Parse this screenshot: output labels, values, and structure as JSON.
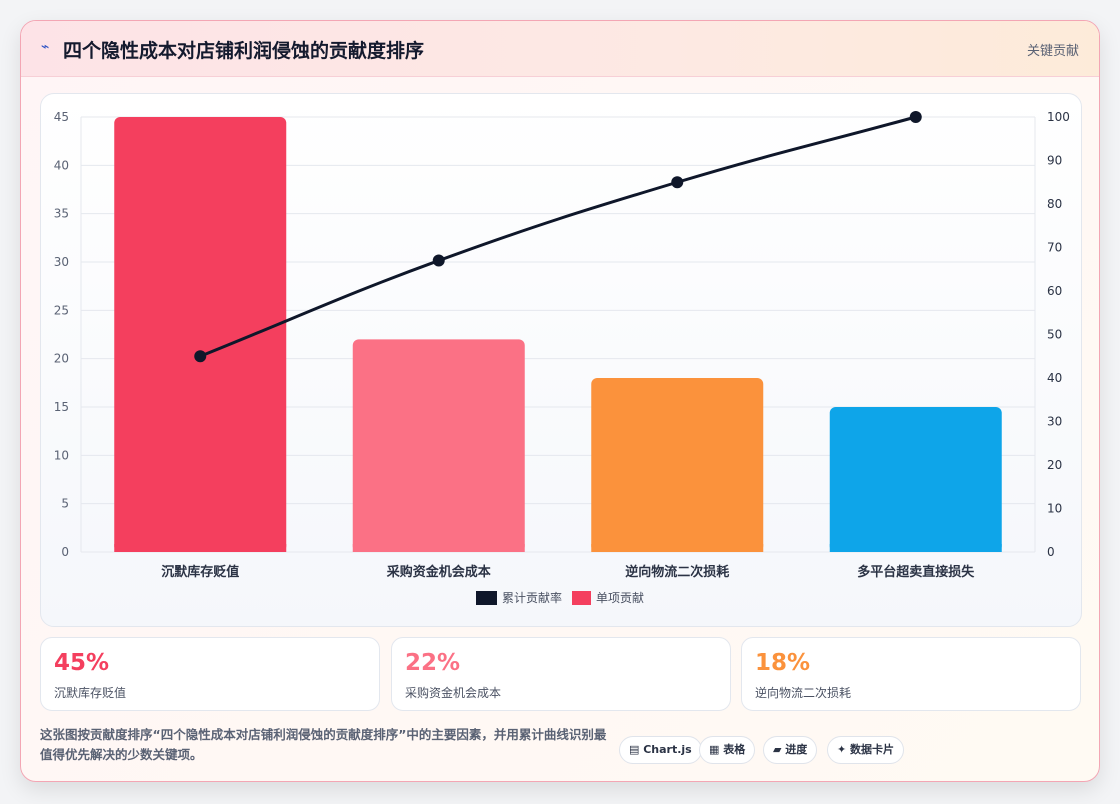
{
  "header": {
    "icon": "chart-line-icon",
    "icon_glyph": "⌁",
    "title": "四个隐性成本对店铺利润侵蚀的贡献度排序",
    "tag": "关键贡献"
  },
  "chart_data": {
    "type": "bar",
    "title": "",
    "categories": [
      "沉默库存贬值",
      "采购资金机会成本",
      "逆向物流二次损耗",
      "多平台超卖直接损失"
    ],
    "series": [
      {
        "name": "单项贡献",
        "type": "bar",
        "axis": "left",
        "values": [
          45,
          22,
          18,
          15
        ],
        "colors": [
          "#f43f5e",
          "#fb7185",
          "#fb923c",
          "#0ea5e9"
        ]
      },
      {
        "name": "累计贡献率",
        "type": "line",
        "axis": "right",
        "values": [
          45,
          67,
          85,
          100
        ],
        "color": "#0f172a"
      }
    ],
    "y_left": {
      "min": 0,
      "max": 45,
      "step": 5
    },
    "y_right": {
      "min": 0,
      "max": 100,
      "step": 10
    },
    "grid": true,
    "legend_position": "bottom",
    "legend_order": [
      "累计贡献率",
      "单项贡献"
    ]
  },
  "kpis": [
    {
      "value": "45%",
      "label": "沉默库存贬值",
      "color": "#f43f5e"
    },
    {
      "value": "22%",
      "label": "采购资金机会成本",
      "color": "#fb7185"
    },
    {
      "value": "18%",
      "label": "逆向物流二次损耗",
      "color": "#fb923c"
    }
  ],
  "footnote": "这张图按贡献度排序“四个隐性成本对店铺利润侵蚀的贡献度排序”中的主要因素，并用累计曲线识别最值得优先解决的少数关键项。",
  "chips": [
    {
      "icon": "chart-icon",
      "label": "▤ Chart.js"
    },
    {
      "icon": "table-icon",
      "label": "▦ 表格"
    },
    {
      "icon": "progress-icon",
      "label": "▰ 进度"
    },
    {
      "icon": "card-icon",
      "label": "✦ 数据卡片"
    }
  ]
}
